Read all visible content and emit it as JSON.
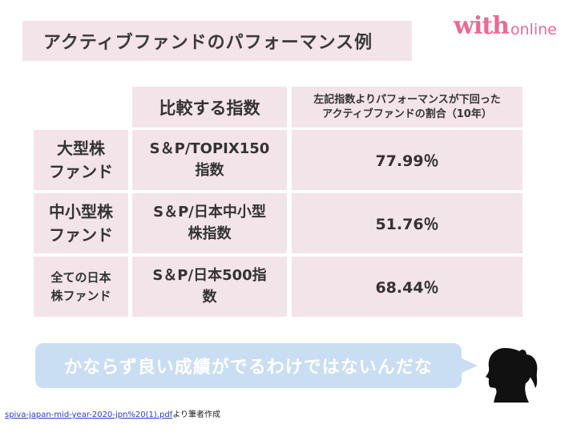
{
  "title": "アクティブファンドのパフォーマンス例",
  "logo": {
    "with": "with",
    "online": "online"
  },
  "header": {
    "index_col": "比較する指数",
    "pct_col_line1": "左記指数よりパフォーマンスが下回った",
    "pct_col_line2": "アクティブファンドの割合（10年）"
  },
  "rows": [
    {
      "label_line1": "大型株",
      "label_line2": "ファンド",
      "index_line1": "S＆P/TOPIX150",
      "index_line2": "指数",
      "pct": "77.99％"
    },
    {
      "label_line1": "中小型株",
      "label_line2": "ファンド",
      "index_line1": "S＆P/日本中小型",
      "index_line2": "株指数",
      "pct": "51.76％"
    },
    {
      "label_line1": "全ての日本",
      "label_line2": "株ファンド",
      "index_line1": "S＆P/日本500指",
      "index_line2": "数",
      "pct": "68.44％"
    }
  ],
  "bubble_text": "かならず良い成績がでるわけではないんだな",
  "source": {
    "link": "spiva-japan-mid-year-2020-jpn%20(1).pdf",
    "suffix": "より筆者作成"
  },
  "colors": {
    "cell_bg": "#f3e4ea",
    "bubble_bg": "#c9def2",
    "logo": "#ea6a93",
    "silhouette": "#111111"
  },
  "icons": {
    "person": "woman-silhouette-icon"
  }
}
